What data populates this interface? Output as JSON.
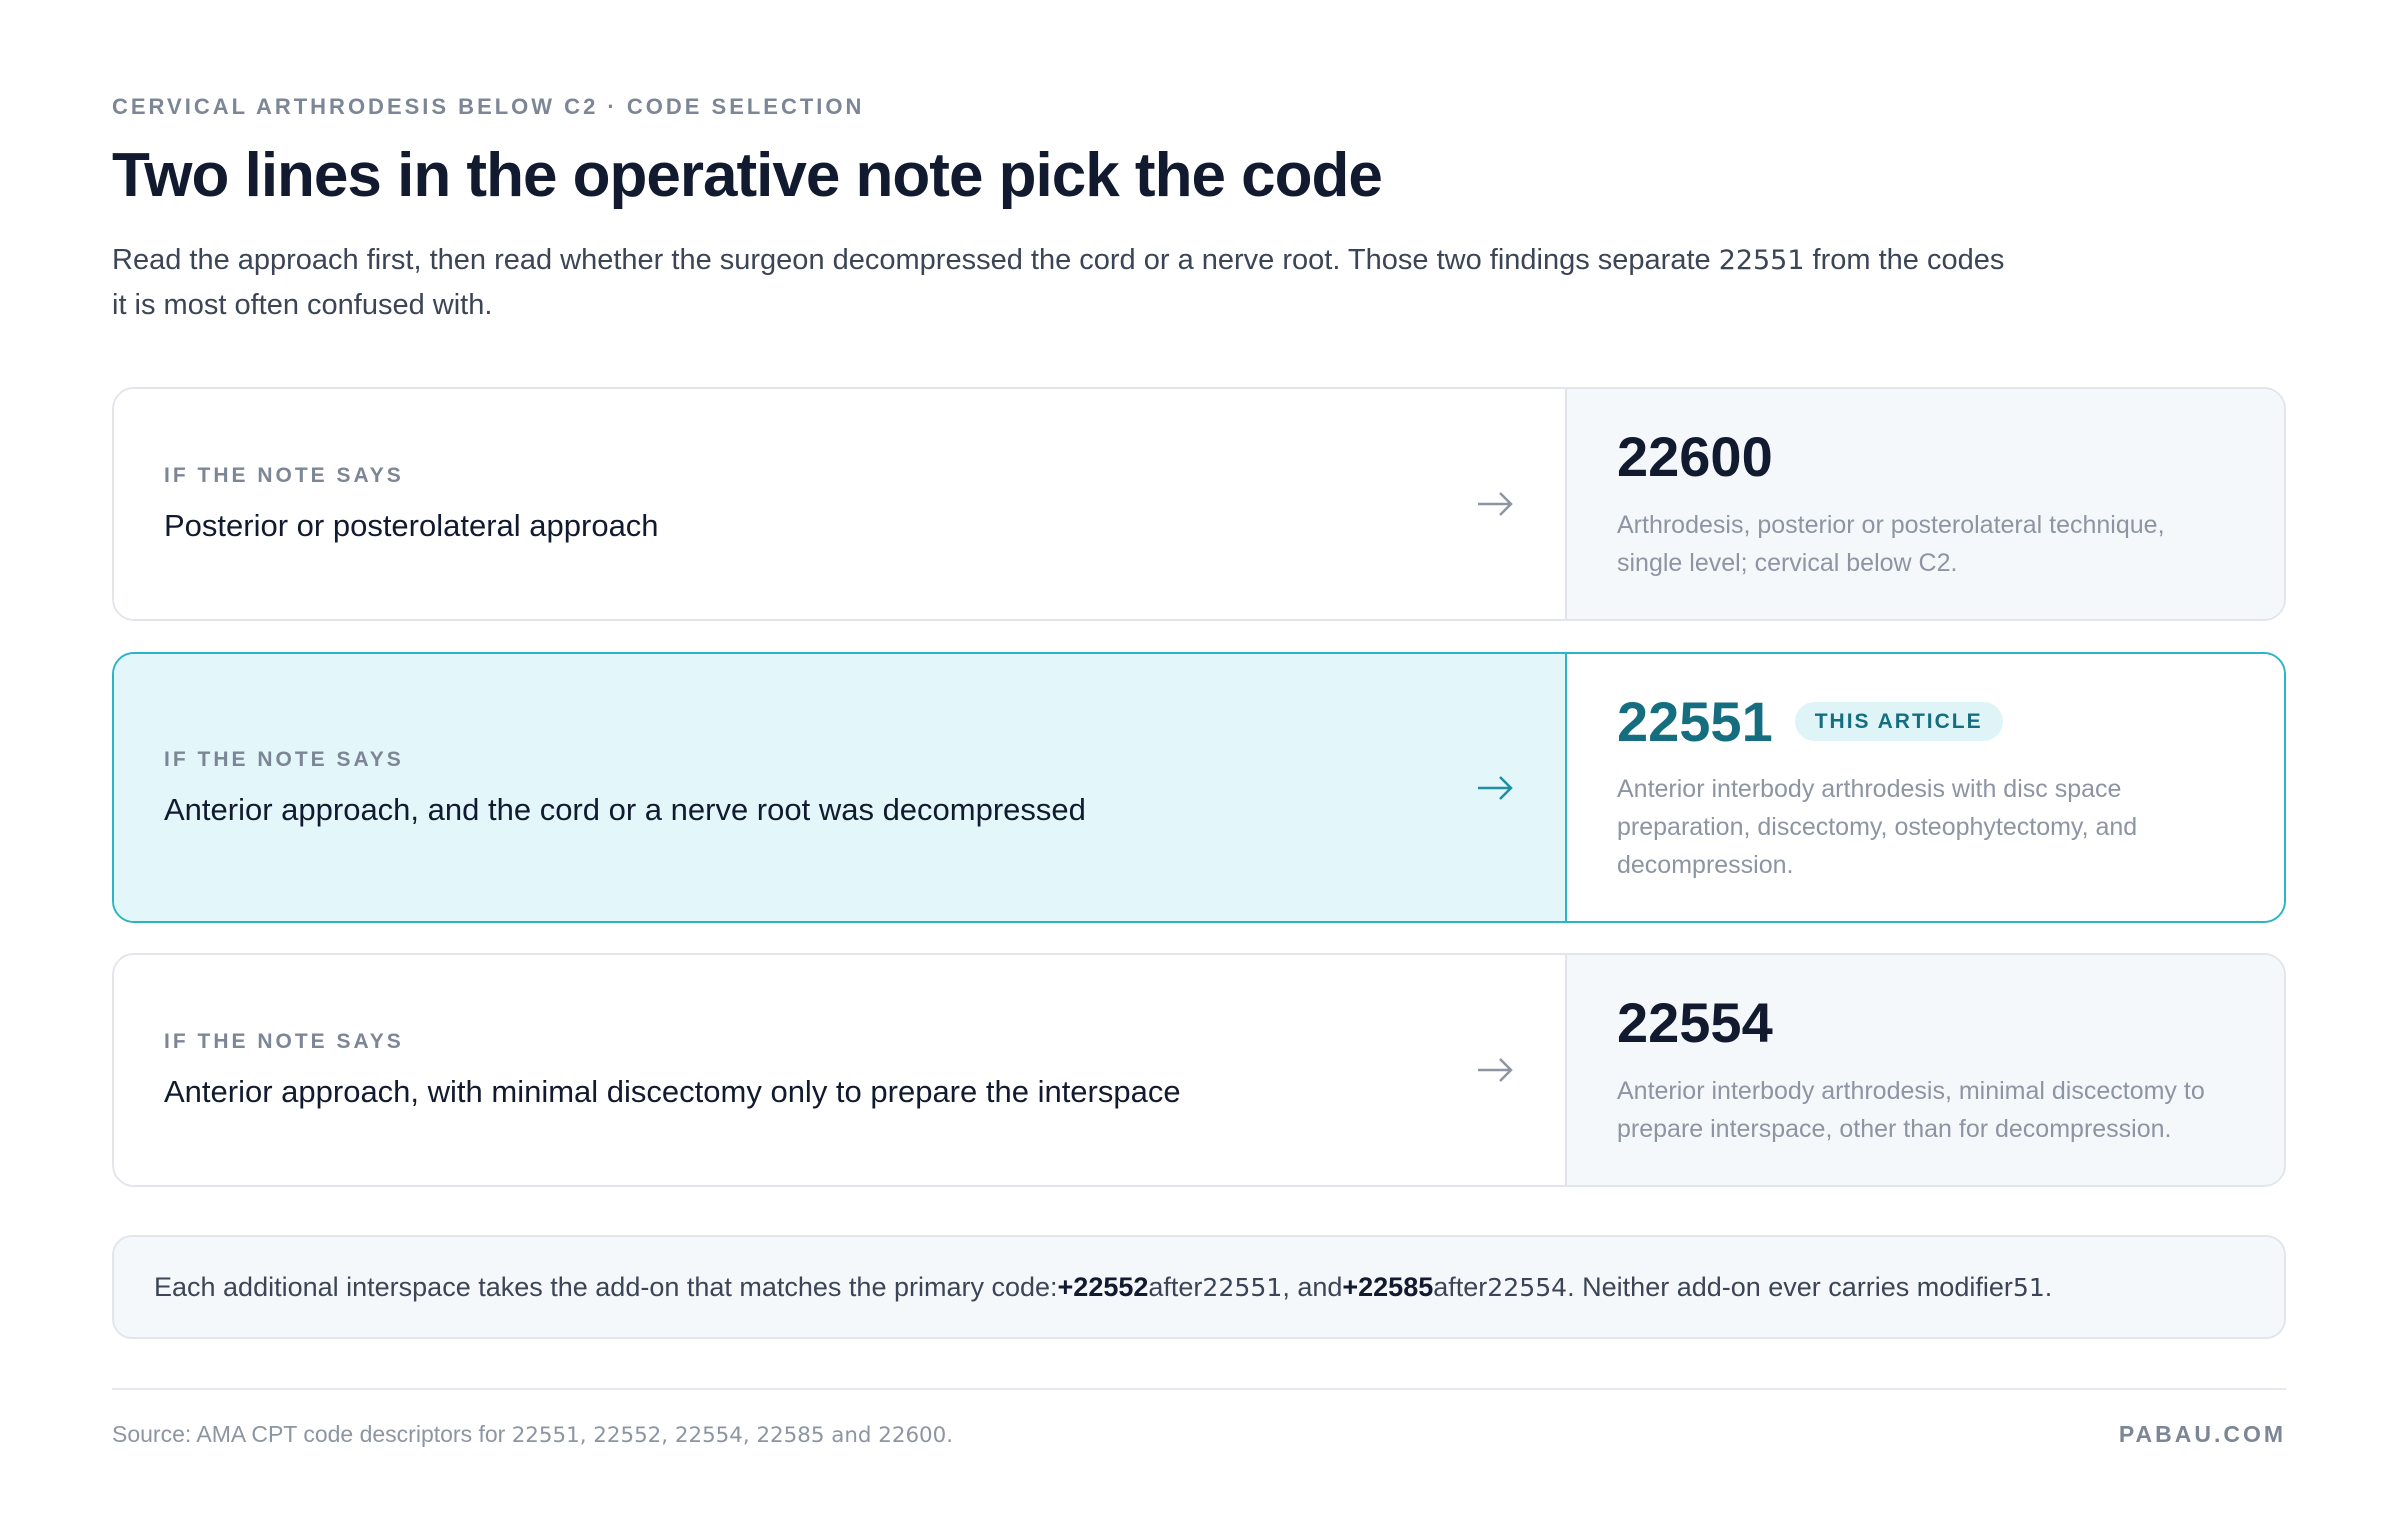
{
  "header": {
    "eyebrow": "CERVICAL ARTHRODESIS BELOW C2 · CODE SELECTION",
    "title": "Two lines in the operative note pick the code",
    "intro": [
      "Read the approach first, then read whether the surgeon decompressed the cord or a nerve root. Those two findings separate ",
      "22551",
      " from the codes it is most often confused with."
    ]
  },
  "rows": [
    {
      "label": "IF THE NOTE SAYS",
      "condition": "Posterior or posterolateral approach",
      "code": "22600",
      "description": "Arthrodesis, posterior or posterolateral technique, single level; cervical below C2."
    },
    {
      "label": "IF THE NOTE SAYS",
      "condition": "Anterior approach, and the cord or a nerve root was decompressed",
      "code": "22551",
      "badge": "THIS ARTICLE",
      "description": "Anterior interbody arthrodesis with disc space preparation, discectomy, osteophytectomy, and decompression."
    },
    {
      "label": "IF THE NOTE SAYS",
      "condition": "Anterior approach, with minimal discectomy only to prepare the interspace",
      "code": "22554",
      "description": "Anterior interbody arthrodesis, minimal discectomy to prepare interspace, other than for decompression."
    }
  ],
  "note": [
    "Each additional interspace takes the add-on that matches the primary code: ",
    "+22552",
    " after ",
    "22551",
    ", and ",
    "+22585",
    " after ",
    "22554",
    ". Neither add-on ever carries modifier ",
    "51",
    "."
  ],
  "footer": {
    "source": [
      "Source: AMA CPT code descriptors for ",
      "22551, 22552, 22554, 22585 and 22600."
    ],
    "brand": "PABAU.COM"
  }
}
